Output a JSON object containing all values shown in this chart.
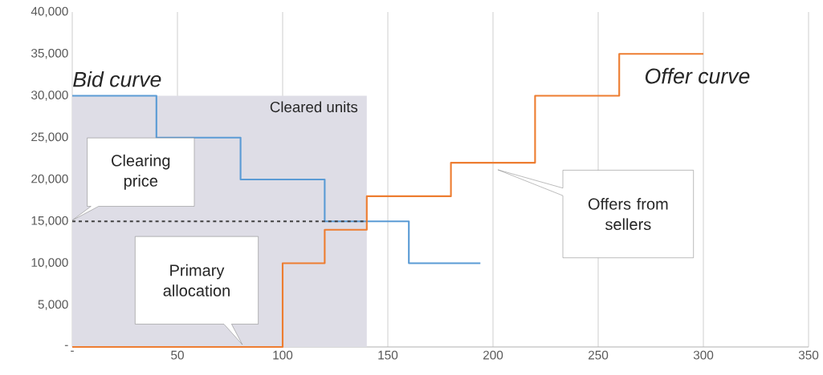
{
  "chart_data": {
    "type": "step",
    "xlim": [
      0,
      350
    ],
    "ylim": [
      0,
      40000
    ],
    "xticks": [
      {
        "value": 0,
        "label": "-"
      },
      50,
      100,
      150,
      200,
      250,
      300,
      350
    ],
    "yticks": [
      {
        "value": 0,
        "label": "-"
      },
      {
        "value": 5000,
        "label": "5,000"
      },
      {
        "value": 10000,
        "label": "10,000"
      },
      {
        "value": 15000,
        "label": "15,000"
      },
      {
        "value": 20000,
        "label": "20,000"
      },
      {
        "value": 25000,
        "label": "25,000"
      },
      {
        "value": 30000,
        "label": "30,000"
      },
      {
        "value": 35000,
        "label": "35,000"
      },
      {
        "value": 40000,
        "label": "40,000"
      }
    ],
    "grid": "x",
    "series": [
      {
        "type": "area",
        "name": "Cleared units",
        "color": "#dedde6",
        "x": [
          0,
          140
        ],
        "values": [
          30000,
          30000
        ]
      },
      {
        "name": "Bid curve",
        "color": "#5b9bd5",
        "x": [
          0,
          40,
          80,
          120,
          160,
          194
        ],
        "values": [
          30000,
          25000,
          20000,
          15000,
          10000,
          10000
        ]
      },
      {
        "name": "Offer curve",
        "color": "#ed7d31",
        "x": [
          0,
          100,
          120,
          140,
          180,
          220,
          260,
          300
        ],
        "values": [
          0,
          10000,
          14000,
          18000,
          22000,
          30000,
          35000,
          35000
        ]
      },
      {
        "type": "line",
        "color": "#404040",
        "line_style": "dashed",
        "x": [
          0,
          140
        ],
        "values": [
          15000,
          15000
        ]
      }
    ],
    "annotations": [
      "Clearing price",
      "Primary allocation",
      "Offers from sellers"
    ]
  }
}
